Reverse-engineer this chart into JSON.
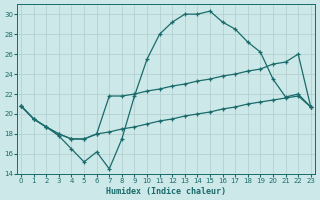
{
  "xlabel": "Humidex (Indice chaleur)",
  "background_color": "#cde8e8",
  "grid_color": "#b0cccc",
  "line_color": "#1a6b6b",
  "xlim": [
    -0.3,
    23.3
  ],
  "ylim": [
    14,
    31
  ],
  "yticks": [
    14,
    16,
    18,
    20,
    22,
    24,
    26,
    28,
    30
  ],
  "xticks": [
    0,
    1,
    2,
    3,
    4,
    5,
    6,
    7,
    8,
    9,
    10,
    11,
    12,
    13,
    14,
    15,
    16,
    17,
    18,
    19,
    20,
    21,
    22,
    23
  ],
  "line_zigzag_x": [
    0,
    1,
    2,
    3,
    4,
    5,
    6,
    7,
    8,
    9,
    10,
    11,
    12,
    13,
    14,
    15,
    16,
    17,
    18,
    19,
    20,
    21,
    22,
    23
  ],
  "line_zigzag_y": [
    20.8,
    19.5,
    18.7,
    17.8,
    16.5,
    15.2,
    16.2,
    14.5,
    17.5,
    21.8,
    25.5,
    28.0,
    29.2,
    30.0,
    30.0,
    30.3,
    29.2,
    28.5,
    27.2,
    26.2,
    23.5,
    21.7,
    22.0,
    20.7
  ],
  "line_upper_x": [
    0,
    1,
    2,
    3,
    4,
    5,
    6,
    7,
    8,
    9,
    10,
    11,
    12,
    13,
    14,
    15,
    16,
    17,
    18,
    19,
    20,
    21,
    22,
    23
  ],
  "line_upper_y": [
    20.8,
    19.5,
    18.7,
    18.0,
    17.5,
    17.5,
    18.0,
    21.8,
    21.8,
    22.0,
    22.3,
    22.5,
    22.8,
    23.0,
    23.3,
    23.5,
    23.8,
    24.0,
    24.3,
    24.5,
    25.0,
    25.2,
    26.0,
    20.7
  ],
  "line_lower_x": [
    0,
    1,
    2,
    3,
    4,
    5,
    6,
    7,
    8,
    9,
    10,
    11,
    12,
    13,
    14,
    15,
    16,
    17,
    18,
    19,
    20,
    21,
    22,
    23
  ],
  "line_lower_y": [
    20.8,
    19.5,
    18.7,
    18.0,
    17.5,
    17.5,
    18.0,
    18.2,
    18.5,
    18.7,
    19.0,
    19.3,
    19.5,
    19.8,
    20.0,
    20.2,
    20.5,
    20.7,
    21.0,
    21.2,
    21.4,
    21.6,
    21.8,
    20.7
  ]
}
